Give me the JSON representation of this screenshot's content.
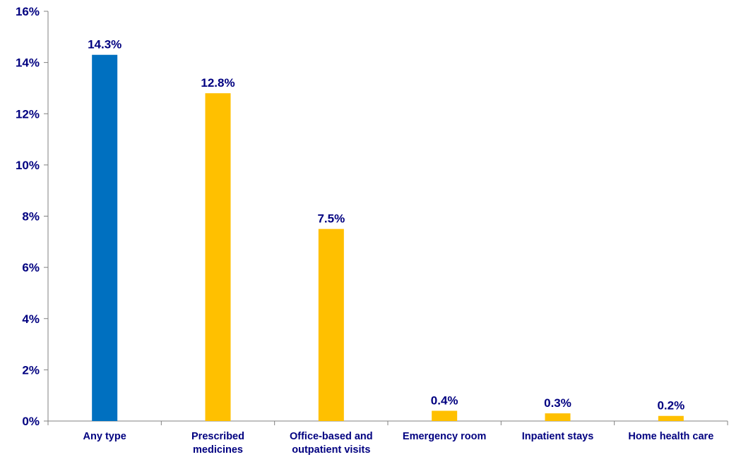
{
  "chart_data": {
    "type": "bar",
    "title": "",
    "xlabel": "",
    "ylabel": "",
    "categories": [
      [
        "Any type"
      ],
      [
        "Prescribed",
        "medicines"
      ],
      [
        "Office-based and",
        "outpatient visits"
      ],
      [
        "Emergency room"
      ],
      [
        "Inpatient stays"
      ],
      [
        "Home health care"
      ]
    ],
    "values": [
      14.3,
      12.8,
      7.5,
      0.4,
      0.3,
      0.2
    ],
    "data_labels": [
      "14.3%",
      "12.8%",
      "7.5%",
      "0.4%",
      "0.3%",
      "0.2%"
    ],
    "bar_colors": [
      "#0070C0",
      "#FFC000",
      "#FFC000",
      "#FFC000",
      "#FFC000",
      "#FFC000"
    ],
    "ylim": [
      0,
      16
    ],
    "y_ticks": [
      0,
      2,
      4,
      6,
      8,
      10,
      12,
      14,
      16
    ],
    "y_tick_labels": [
      "0%",
      "2%",
      "4%",
      "6%",
      "8%",
      "10%",
      "12%",
      "14%",
      "16%"
    ],
    "grid": false,
    "legend": "none",
    "label_color": "#000080",
    "axis_color": "#808080"
  }
}
